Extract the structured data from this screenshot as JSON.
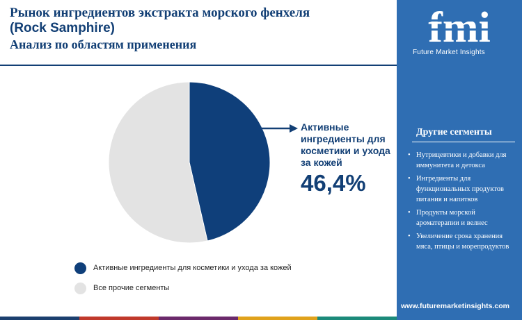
{
  "header": {
    "title_line1": "Рынок ингредиентов экстракта морского фенхеля",
    "title_line2": "(Rock Samphire)",
    "subtitle": "Анализ по областям применения"
  },
  "chart_data": {
    "type": "pie",
    "title": "Рынок ингредиентов экстракта морского фенхеля (Rock Samphire)",
    "subtitle": "Анализ по областям применения",
    "unit": "%",
    "slices": [
      {
        "label": "Активные ингредиенты для косметики и ухода за кожей",
        "value": 46.4,
        "color": "#0f3f7a"
      },
      {
        "label": "Все прочие сегменты",
        "value": 53.6,
        "color": "#e3e3e3"
      }
    ],
    "callout": {
      "label": "Активные ингредиенты для косметики и ухода за кожей",
      "value_text": "46,4%"
    },
    "legend_position": "bottom-left"
  },
  "sidebar": {
    "logo_letters": "fmi",
    "logo_text": "Future Market Insights",
    "segments_title": "Другие сегменты",
    "segments": [
      "Нутрицевтики и добавки для иммунитета и детокса",
      "Ингредиенты для функциональных продуктов питания и напитков",
      "Продукты морской ароматерапии и велнес",
      "Увеличение срока хранения мяса, птицы и морепродуктов"
    ],
    "url": "www.futuremarketinsights.com"
  },
  "colors": {
    "brand": "#123f75",
    "sidebar_bg": "#2f6eb3",
    "bar": [
      "#1c3f6e",
      "#c0392b",
      "#6b2a6b",
      "#e0a21b",
      "#1c8a7a"
    ]
  }
}
